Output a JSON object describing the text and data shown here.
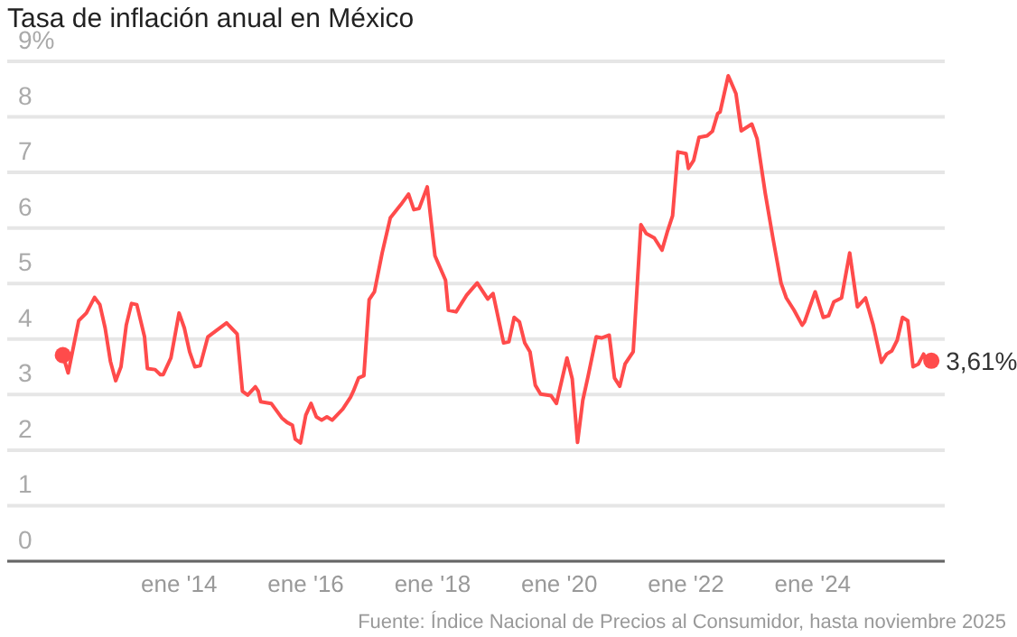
{
  "chart_data": {
    "type": "line",
    "title": "Tasa de inflación anual en México",
    "xlim": [
      "2011-04-15",
      "2026-02-01"
    ],
    "xticks": [
      {
        "value": "2014-01",
        "label": "ene '14"
      },
      {
        "value": "2016-01",
        "label": "ene '16"
      },
      {
        "value": "2018-01",
        "label": "ene '18"
      },
      {
        "value": "2020-01",
        "label": "ene '20"
      },
      {
        "value": "2022-01",
        "label": "ene '22"
      },
      {
        "value": "2024-01",
        "label": "ene '24"
      }
    ],
    "ylim": [
      0,
      9
    ],
    "yticks": [
      0,
      1,
      2,
      3,
      4,
      5,
      6,
      7,
      8,
      {
        "value": 9,
        "label": "9%"
      }
    ],
    "grid": "y",
    "line_style": "solid",
    "series": [
      {
        "color": "#ff4b4b",
        "x": [
          "2012-03-01",
          "2012-04-01",
          "2012-06-01",
          "2012-07-15",
          "2012-09-01",
          "2012-10-01",
          "2012-11-01",
          "2012-12-01",
          "2013-01-01",
          "2013-02-01",
          "2013-03-01",
          "2013-04-01",
          "2013-05-01",
          "2013-06-15",
          "2013-07-01",
          "2013-08-15",
          "2013-09-15",
          "2013-10-01",
          "2013-11-15",
          "2014-01-01",
          "2014-02-01",
          "2014-03-01",
          "2014-04-01",
          "2014-05-01",
          "2014-06-15",
          "2014-10-01",
          "2014-12-01",
          "2015-01-01",
          "2015-02-01",
          "2015-03-15",
          "2015-04-01",
          "2015-04-15",
          "2015-06-15",
          "2015-08-15",
          "2015-09-15",
          "2015-10-15",
          "2015-11-01",
          "2015-12-01",
          "2016-01-01",
          "2016-02-01",
          "2016-03-01",
          "2016-04-01",
          "2016-05-01",
          "2016-06-01",
          "2016-08-01",
          "2016-09-15",
          "2016-10-01",
          "2016-11-01",
          "2016-12-01",
          "2017-01-01",
          "2017-02-01",
          "2017-03-15",
          "2017-05-01",
          "2017-07-01",
          "2017-08-15",
          "2017-09-15",
          "2017-10-15",
          "2017-12-01",
          "2018-01-15",
          "2018-02-15",
          "2018-03-15",
          "2018-04-01",
          "2018-05-15",
          "2018-07-15",
          "2018-09-15",
          "2018-11-15",
          "2018-12-15",
          "2019-02-15",
          "2019-03-15",
          "2019-04-15",
          "2019-05-15",
          "2019-06-15",
          "2019-07-15",
          "2019-08-15",
          "2019-09-15",
          "2019-11-15",
          "2019-12-15",
          "2020-02-15",
          "2020-03-15",
          "2020-04-15",
          "2020-05-15",
          "2020-06-15",
          "2020-08-01",
          "2020-09-01",
          "2020-10-15",
          "2020-11-15",
          "2020-12-15",
          "2021-01-15",
          "2021-03-01",
          "2021-04-15",
          "2021-05-15",
          "2021-07-01",
          "2021-08-15",
          "2021-09-15",
          "2021-10-15",
          "2021-11-15",
          "2022-01-01",
          "2022-01-15",
          "2022-02-15",
          "2022-03-15",
          "2022-05-01",
          "2022-06-01",
          "2022-07-01",
          "2022-07-15",
          "2022-09-01",
          "2022-09-15",
          "2022-10-15",
          "2022-11-15",
          "2023-01-15",
          "2023-02-15",
          "2023-04-01",
          "2023-05-15",
          "2023-07-01",
          "2023-08-01",
          "2023-09-15",
          "2023-11-01",
          "2023-11-15",
          "2024-01-15",
          "2024-03-01",
          "2024-04-01",
          "2024-05-01",
          "2024-06-15",
          "2024-08-01",
          "2024-09-15",
          "2024-11-01",
          "2024-12-15",
          "2025-02-01",
          "2025-03-01",
          "2025-04-01",
          "2025-05-01",
          "2025-06-01",
          "2025-07-01",
          "2025-08-01",
          "2025-09-01",
          "2025-10-01",
          "2025-10-15",
          "2025-11-15"
        ],
        "values": [
          3.71,
          3.39,
          4.33,
          4.47,
          4.75,
          4.62,
          4.2,
          3.6,
          3.25,
          3.5,
          4.25,
          4.64,
          4.62,
          4.04,
          3.47,
          3.45,
          3.36,
          3.36,
          3.66,
          4.47,
          4.2,
          3.77,
          3.5,
          3.52,
          4.04,
          4.29,
          4.09,
          3.06,
          2.99,
          3.14,
          3.06,
          2.87,
          2.84,
          2.58,
          2.5,
          2.45,
          2.2,
          2.13,
          2.63,
          2.84,
          2.6,
          2.54,
          2.6,
          2.54,
          2.74,
          2.95,
          3.06,
          3.3,
          3.34,
          4.71,
          4.85,
          5.55,
          6.18,
          6.42,
          6.61,
          6.33,
          6.35,
          6.74,
          5.5,
          5.28,
          5.06,
          4.52,
          4.49,
          4.79,
          5.01,
          4.72,
          4.82,
          3.93,
          3.95,
          4.39,
          4.31,
          3.93,
          3.77,
          3.17,
          3.01,
          2.98,
          2.84,
          3.66,
          3.28,
          2.14,
          2.9,
          3.33,
          4.04,
          4.02,
          4.07,
          3.3,
          3.15,
          3.55,
          3.77,
          6.06,
          5.9,
          5.82,
          5.6,
          5.93,
          6.22,
          7.37,
          7.34,
          7.07,
          7.22,
          7.63,
          7.66,
          7.74,
          8.06,
          8.09,
          8.74,
          8.64,
          8.42,
          7.75,
          7.87,
          7.61,
          6.63,
          5.82,
          5.01,
          4.74,
          4.52,
          4.25,
          4.31,
          4.85,
          4.39,
          4.42,
          4.67,
          4.74,
          5.55,
          4.58,
          4.74,
          4.25,
          3.58,
          3.73,
          3.79,
          3.98,
          4.39,
          4.33,
          3.5,
          3.55,
          3.73,
          3.6,
          3.61
        ]
      },
      {
        "type": "scatter",
        "color": "#ff4b4b",
        "marker": "circle",
        "x": [
          "2012-03-01",
          "2025-11-15"
        ],
        "values": [
          3.71,
          3.61
        ]
      }
    ],
    "annotations": [
      {
        "text": "3,61%",
        "x": "2025-11-15",
        "y": 3.61
      },
      "Fuente: Índice Nacional de Precios al Consumidor, hasta noviembre 2025"
    ]
  }
}
